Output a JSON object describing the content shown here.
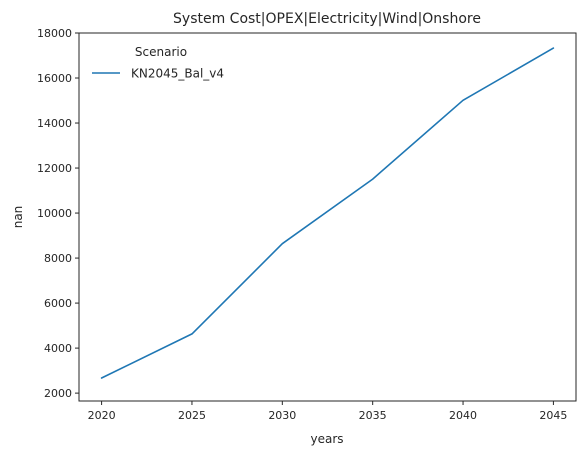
{
  "chart_data": {
    "type": "line",
    "title": "System Cost|OPEX|Electricity|Wind|Onshore",
    "xlabel": "years",
    "ylabel": "nan",
    "x": [
      2020,
      2025,
      2030,
      2035,
      2040,
      2045
    ],
    "xticks": [
      "2020",
      "2025",
      "2030",
      "2035",
      "2040",
      "2045"
    ],
    "ylim": [
      2000,
      18000
    ],
    "yticks": [
      "2000",
      "4000",
      "6000",
      "8000",
      "10000",
      "12000",
      "14000",
      "16000",
      "18000"
    ],
    "grid": false,
    "legend": {
      "title": "Scenario",
      "placement": "top-left"
    },
    "series": [
      {
        "name": "KN2045_Bal_v4",
        "color": "#1f77b4",
        "values": [
          2670,
          4630,
          8640,
          11510,
          15010,
          17330
        ]
      }
    ]
  }
}
